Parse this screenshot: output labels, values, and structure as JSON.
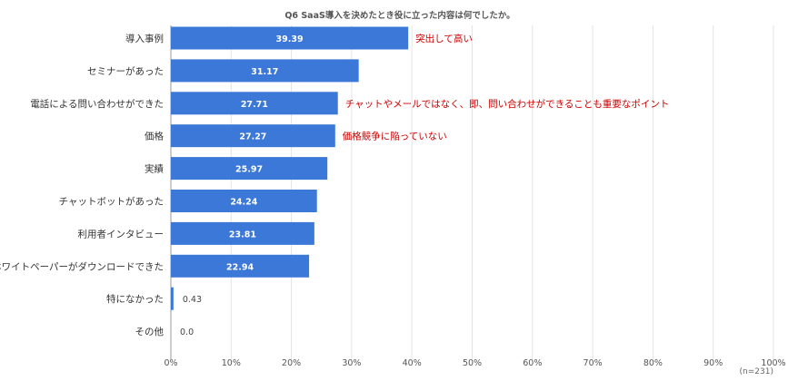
{
  "chart_data": {
    "type": "bar",
    "orientation": "horizontal",
    "title": "Q6 SaaS導入を決めたとき役に立った内容は何でしたか。",
    "categories": [
      "導入事例",
      "セミナーがあった",
      "電話による問い合わせができた",
      "価格",
      "実績",
      "チャットボットがあった",
      "利用者インタビュー",
      "ホワイトペーパーがダウンロードできた",
      "特になかった",
      "その他"
    ],
    "values": [
      39.39,
      31.17,
      27.71,
      27.27,
      25.97,
      24.24,
      23.81,
      22.94,
      0.43,
      0.0
    ],
    "value_labels": [
      "39.39",
      "31.17",
      "27.71",
      "27.27",
      "25.97",
      "24.24",
      "23.81",
      "22.94",
      "0.43",
      "0.0"
    ],
    "xlim": [
      0,
      100
    ],
    "x_ticks": [
      "0%",
      "10%",
      "20%",
      "30%",
      "40%",
      "50%",
      "60%",
      "70%",
      "80%",
      "90%",
      "100%"
    ],
    "grid": true,
    "bar_color": "#3b78d8",
    "annotations": [
      {
        "category_index": 0,
        "text": "突出して高い"
      },
      {
        "category_index": 2,
        "text": "チャットやメールではなく、即、問い合わせができることも重要なポイント"
      },
      {
        "category_index": 3,
        "text": "価格競争に陥っていない"
      }
    ],
    "annotation_color": "#cc0000",
    "sample_note": "(n=231)"
  }
}
